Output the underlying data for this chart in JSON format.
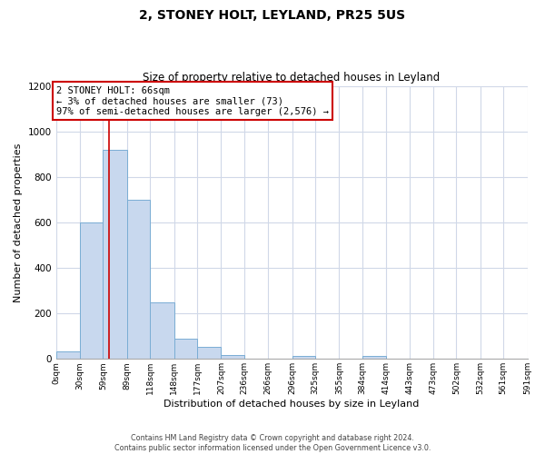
{
  "title": "2, STONEY HOLT, LEYLAND, PR25 5US",
  "subtitle": "Size of property relative to detached houses in Leyland",
  "xlabel": "Distribution of detached houses by size in Leyland",
  "ylabel": "Number of detached properties",
  "bar_color": "#c8d8ee",
  "bar_edge_color": "#7aadd4",
  "annotation_box_edge": "#cc0000",
  "vline_color": "#cc0000",
  "vline_x": 66,
  "annotation_line1": "2 STONEY HOLT: 66sqm",
  "annotation_line2": "← 3% of detached houses are smaller (73)",
  "annotation_line3": "97% of semi-detached houses are larger (2,576) →",
  "footer_line1": "Contains HM Land Registry data © Crown copyright and database right 2024.",
  "footer_line2": "Contains public sector information licensed under the Open Government Licence v3.0.",
  "bin_edges": [
    0,
    30,
    59,
    89,
    118,
    148,
    177,
    207,
    236,
    266,
    296,
    325,
    355,
    384,
    414,
    443,
    473,
    502,
    532,
    561,
    591
  ],
  "bin_heights": [
    35,
    600,
    920,
    700,
    248,
    88,
    55,
    18,
    0,
    0,
    12,
    0,
    0,
    12,
    0,
    0,
    0,
    0,
    0,
    0
  ],
  "tick_labels": [
    "0sqm",
    "30sqm",
    "59sqm",
    "89sqm",
    "118sqm",
    "148sqm",
    "177sqm",
    "207sqm",
    "236sqm",
    "266sqm",
    "296sqm",
    "325sqm",
    "355sqm",
    "384sqm",
    "414sqm",
    "443sqm",
    "473sqm",
    "502sqm",
    "532sqm",
    "561sqm",
    "591sqm"
  ],
  "ylim": [
    0,
    1200
  ],
  "yticks": [
    0,
    200,
    400,
    600,
    800,
    1000,
    1200
  ],
  "grid_color": "#d0d8e8",
  "figsize": [
    6.0,
    5.0
  ],
  "dpi": 100
}
